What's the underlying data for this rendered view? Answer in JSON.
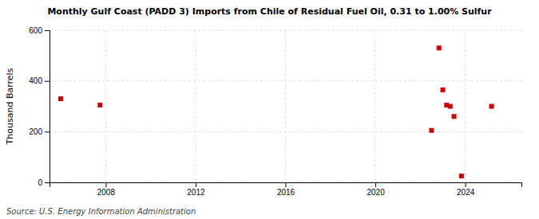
{
  "chart_data": {
    "type": "scatter",
    "title": "Monthly Gulf Coast (PADD 3) Imports from Chile of Residual Fuel Oil, 0.31 to 1.00% Sulfur",
    "y_label": "Thousand Barrels",
    "annotations": [
      "Source: U.S. Energy Information Administration"
    ],
    "x": [
      2006.0,
      2007.75,
      2022.5,
      2022.83,
      2023.0,
      2023.17,
      2023.33,
      2023.5,
      2023.83,
      2025.17
    ],
    "values": [
      330,
      305,
      205,
      530,
      365,
      305,
      300,
      260,
      25,
      300
    ],
    "color": "#cc0000",
    "marker": "square",
    "xlim": [
      2005.5,
      2026.5
    ],
    "xticks": [
      2008,
      2012,
      2016,
      2020,
      2024
    ],
    "ylim": [
      0,
      600
    ],
    "yticks": [
      0,
      200,
      400,
      600
    ],
    "grid": true
  }
}
